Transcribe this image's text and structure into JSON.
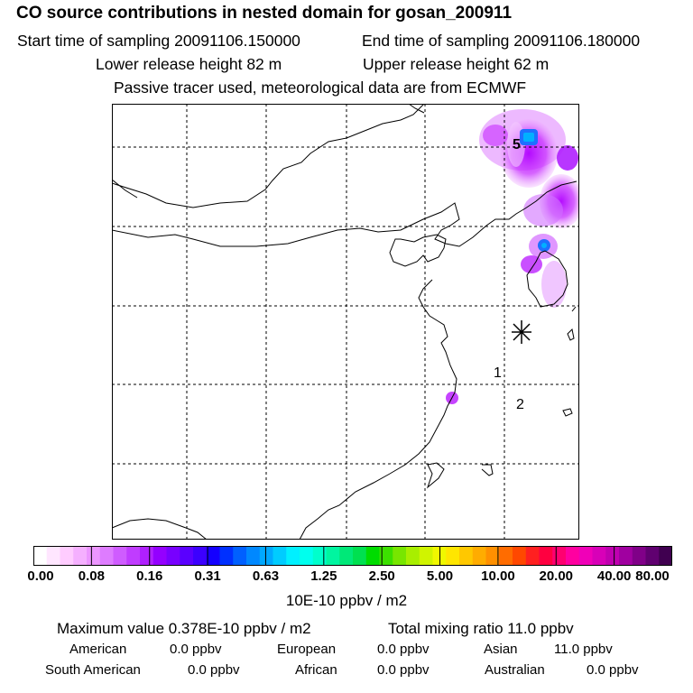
{
  "header": {
    "title": "CO  source contributions in nested domain for gosan_200911",
    "start_label": "Start time of sampling 20091106.150000",
    "end_label": "End time of sampling 20091106.180000",
    "lower_label": "Lower release height   82 m",
    "upper_label": "Upper release height   62 m",
    "tracer_label": "Passive tracer used, meteorological data are from ECMWF"
  },
  "map": {
    "markers": [
      "5",
      "1",
      "2"
    ],
    "hotspot_color": "#1e6fff",
    "plume_color": "#a000ff"
  },
  "colorbar": {
    "tick_labels": [
      "0.00",
      "0.08",
      "0.16",
      "0.31",
      "0.63",
      "1.25",
      "2.50",
      "5.00",
      "10.00",
      "20.00",
      "40.00",
      "80.00"
    ],
    "units": "10E-10 ppbv / m2",
    "colors": [
      "#ffffff",
      "#ffe6ff",
      "#ffccff",
      "#f5b0ff",
      "#ec96ff",
      "#de7cff",
      "#cf5cff",
      "#c03cff",
      "#b020ff",
      "#9400ff",
      "#7800ff",
      "#5a00ff",
      "#3c00ff",
      "#1400ff",
      "#0030ff",
      "#0060ff",
      "#0088ff",
      "#00a8ff",
      "#00ccff",
      "#00f0ff",
      "#00ffee",
      "#00ffcc",
      "#00f5a0",
      "#00e878",
      "#00e050",
      "#00dc00",
      "#3ce000",
      "#78e600",
      "#a8ee00",
      "#d0f400",
      "#f0f800",
      "#ffe600",
      "#ffc800",
      "#ffac00",
      "#ff9000",
      "#ff6c00",
      "#ff4800",
      "#ff2020",
      "#ff0040",
      "#ff0070",
      "#ff00a0",
      "#f000b8",
      "#d800b8",
      "#c000b0",
      "#a000a0",
      "#800088",
      "#600070",
      "#400050"
    ]
  },
  "footer": {
    "max_label": "Maximum value  0.378E-10 ppbv / m2",
    "total_label": "Total mixing ratio        11.0 ppbv",
    "american": "American",
    "american_val": "0.0 ppbv",
    "european": "European",
    "european_val": "0.0 ppbv",
    "asian": "Asian",
    "asian_val": "11.0 ppbv",
    "south_american": "South American",
    "south_american_val": "0.0 ppbv",
    "african": "African",
    "african_val": "0.0 ppbv",
    "australian": "Australian",
    "australian_val": "0.0 ppbv"
  }
}
